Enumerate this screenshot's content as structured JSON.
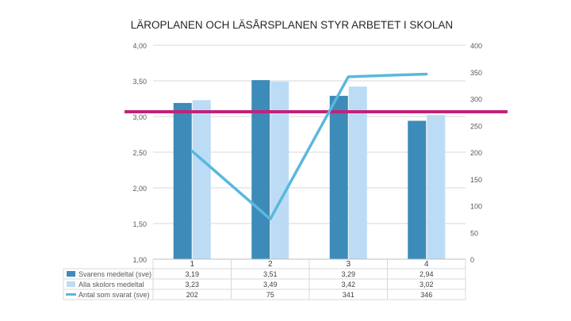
{
  "chart_data": {
    "type": "bar",
    "title": "LÄROPLANEN OCH LÄSÅRSPLANEN STYR ARBETET I SKOLAN",
    "categories": [
      "1",
      "2",
      "3",
      "4"
    ],
    "series": [
      {
        "name": "Svarens medeltal (sve)",
        "type": "bar",
        "axis": "left",
        "color": "#3d8bb8",
        "values": [
          3.19,
          3.51,
          3.29,
          2.94
        ],
        "labels": [
          "3,19",
          "3,51",
          "3,29",
          "2,94"
        ]
      },
      {
        "name": "Alla skolors medeltal",
        "type": "bar",
        "axis": "left",
        "color": "#bcdcf5",
        "values": [
          3.23,
          3.49,
          3.42,
          3.02
        ],
        "labels": [
          "3,23",
          "3,49",
          "3,42",
          "3,02"
        ]
      },
      {
        "name": "Antal som svarat (sve)",
        "type": "line",
        "axis": "right",
        "color": "#5ab8dd",
        "values": [
          202,
          75,
          341,
          346
        ],
        "labels": [
          "202",
          "75",
          "341",
          "346"
        ]
      }
    ],
    "y_left": {
      "range": [
        1.0,
        4.0
      ],
      "ticks": [
        "1,00",
        "1,50",
        "2,00",
        "2,50",
        "3,00",
        "3,50",
        "4,00"
      ]
    },
    "y_right": {
      "range": [
        0,
        400
      ],
      "ticks": [
        "0",
        "50",
        "100",
        "150",
        "200",
        "250",
        "300",
        "350",
        "400"
      ]
    },
    "reference_line": {
      "value": 3.0,
      "axis": "left",
      "color": "#c0237b"
    },
    "grid": true,
    "legend": "data-table-bottom"
  }
}
